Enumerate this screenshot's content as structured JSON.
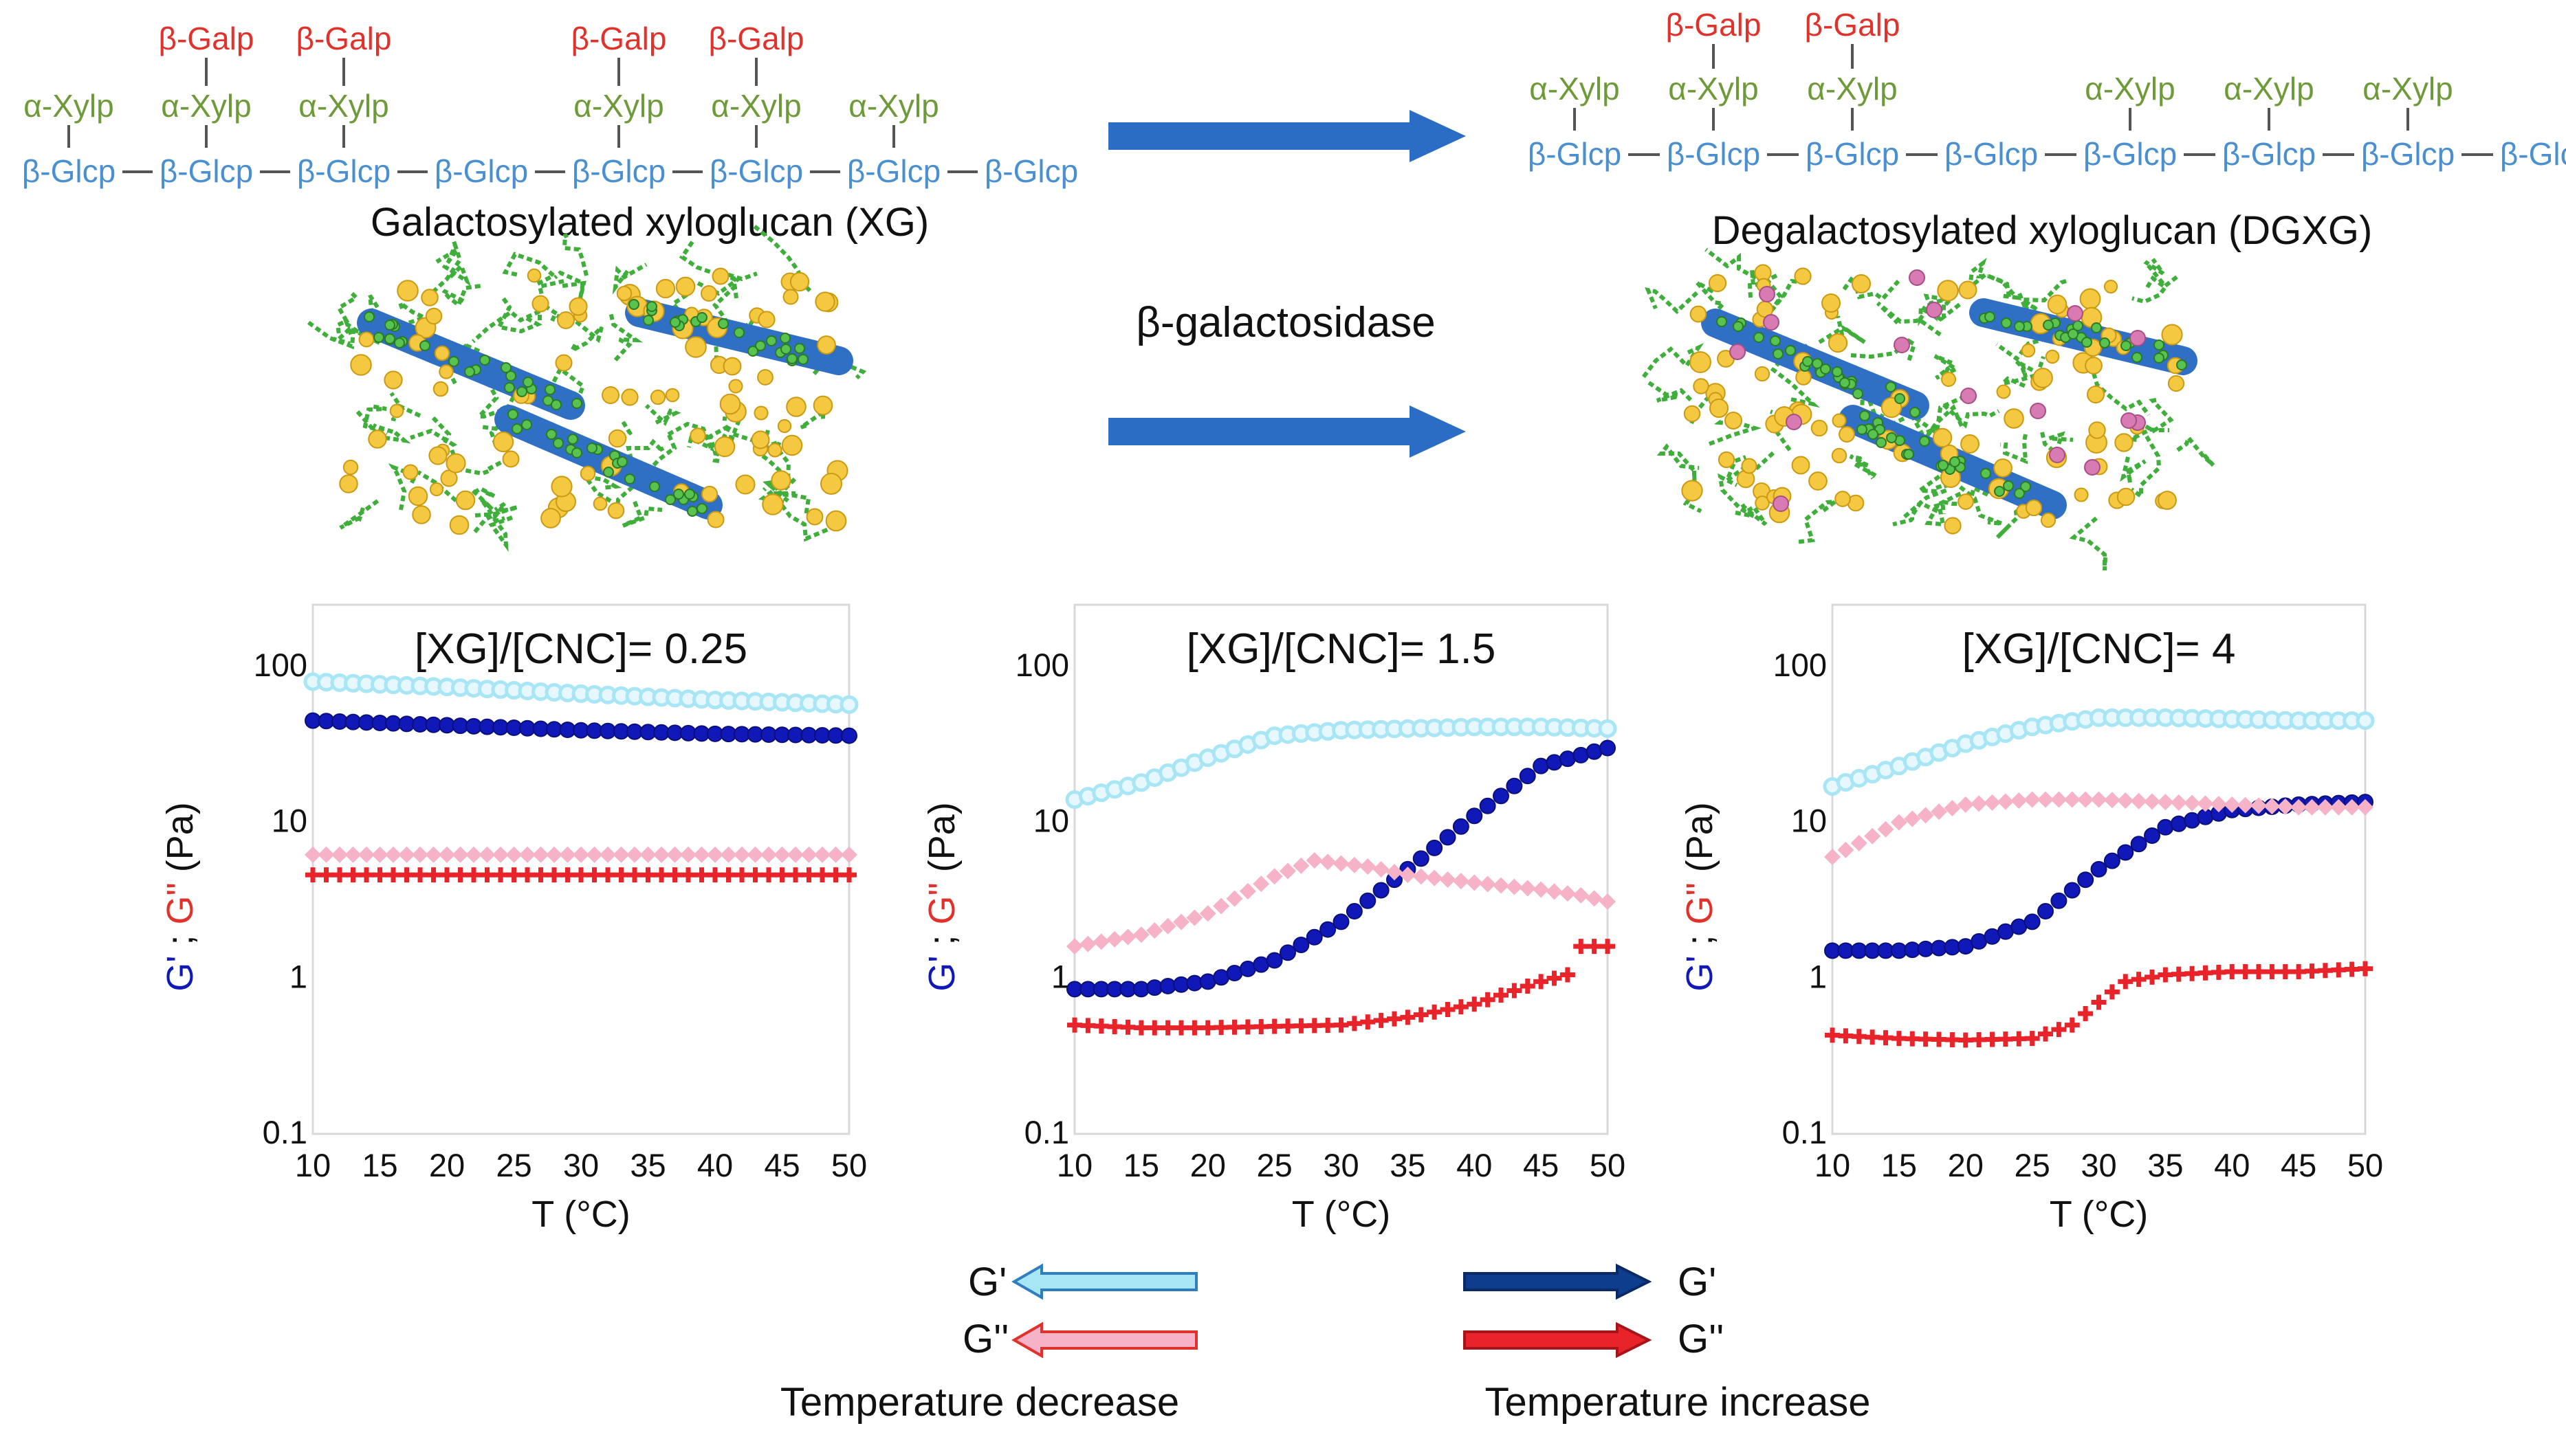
{
  "scheme": {
    "xg_title": "Galactosylated xyloglucan (XG)",
    "dgxg_title": "Degalactosylated xyloglucan (DGXG)",
    "enzyme_label": "β-galactosidase",
    "residues": {
      "glc": "β-Glcp",
      "xyl": "α-Xylp",
      "gal": "β-Galp"
    },
    "xg": {
      "backbone_count": 8,
      "xyl_on": [
        0,
        1,
        2,
        4,
        5,
        6
      ],
      "gal_on": [
        1,
        2,
        4,
        5
      ]
    },
    "dgxg": {
      "backbone_count": 8,
      "xyl_on": [
        0,
        1,
        2,
        4,
        5,
        6
      ],
      "gal_on": [
        1,
        2
      ]
    },
    "colors": {
      "glc": "#4a8fcf",
      "xyl": "#6f9a3a",
      "gal": "#e0312b",
      "arrow": "#2b6cc4"
    }
  },
  "chart_data": [
    {
      "type": "scatter",
      "title": "[XG]/[CNC]= 0.25",
      "xlabel": "T (°C)",
      "ylabel_parts": [
        "G'",
        " ; ",
        "G\"",
        " (Pa)"
      ],
      "xlim": [
        10,
        50
      ],
      "ylim": [
        0.1,
        100
      ],
      "yscale": "log",
      "xticks": [
        "10",
        "15",
        "20",
        "25",
        "30",
        "35",
        "40",
        "45",
        "50"
      ],
      "yticks": [
        "100",
        "10",
        "1",
        "0.1"
      ],
      "series": [
        {
          "key": "gp_dec",
          "marker": "circle-open",
          "color": "#a8e6f5",
          "x": [
            10,
            20,
            30,
            40,
            50
          ],
          "y": [
            80,
            74,
            67,
            61,
            57
          ]
        },
        {
          "key": "gp_inc",
          "marker": "circle",
          "color": "#1018b8",
          "x": [
            10,
            20,
            30,
            40,
            50
          ],
          "y": [
            45,
            42,
            39,
            37,
            36
          ]
        },
        {
          "key": "gpp_dec",
          "marker": "diamond",
          "color": "#f6b3c8",
          "x": [
            10,
            20,
            30,
            40,
            50
          ],
          "y": [
            6.2,
            6.2,
            6.2,
            6.2,
            6.2
          ]
        },
        {
          "key": "gpp_inc",
          "marker": "plus",
          "color": "#e8232a",
          "x": [
            10,
            20,
            30,
            40,
            50
          ],
          "y": [
            4.6,
            4.6,
            4.6,
            4.6,
            4.6
          ]
        }
      ]
    },
    {
      "type": "scatter",
      "title": "[XG]/[CNC]= 1.5",
      "xlabel": "T (°C)",
      "ylabel_parts": [
        "G'",
        " ; ",
        "G\"",
        " (Pa)"
      ],
      "xlim": [
        10,
        50
      ],
      "ylim": [
        0.1,
        100
      ],
      "yscale": "log",
      "xticks": [
        "10",
        "15",
        "20",
        "25",
        "30",
        "35",
        "40",
        "45",
        "50"
      ],
      "yticks": [
        "100",
        "10",
        "1",
        "0.1"
      ],
      "series": [
        {
          "key": "gp_dec",
          "marker": "circle-open",
          "color": "#a8e6f5",
          "x": [
            10,
            15,
            20,
            25,
            30,
            35,
            40,
            45,
            50
          ],
          "y": [
            14,
            18,
            26,
            36,
            39,
            40,
            41,
            41,
            40
          ]
        },
        {
          "key": "gp_inc",
          "marker": "circle",
          "color": "#1018b8",
          "x": [
            10,
            15,
            20,
            25,
            30,
            35,
            40,
            45,
            48,
            50
          ],
          "y": [
            0.85,
            0.85,
            0.95,
            1.3,
            2.3,
            5,
            11,
            23,
            27,
            30
          ]
        },
        {
          "key": "gpp_dec",
          "marker": "diamond",
          "color": "#f6b3c8",
          "x": [
            10,
            15,
            20,
            25,
            28,
            32,
            35,
            40,
            45,
            48,
            50
          ],
          "y": [
            1.6,
            1.9,
            2.6,
            4.5,
            5.7,
            5.2,
            4.6,
            4.1,
            3.7,
            3.4,
            3.1
          ]
        },
        {
          "key": "gpp_inc",
          "marker": "plus",
          "color": "#e8232a",
          "x": [
            10,
            15,
            20,
            25,
            30,
            35,
            40,
            45,
            47,
            48,
            50
          ],
          "y": [
            0.5,
            0.48,
            0.48,
            0.49,
            0.5,
            0.56,
            0.68,
            0.95,
            1.05,
            1.6,
            1.6
          ]
        }
      ]
    },
    {
      "type": "scatter",
      "title": "[XG]/[CNC]= 4",
      "xlabel": "T (°C)",
      "ylabel_parts": [
        "G'",
        " ; ",
        "G\"",
        " (Pa)"
      ],
      "xlim": [
        10,
        50
      ],
      "ylim": [
        0.1,
        100
      ],
      "yscale": "log",
      "xticks": [
        "10",
        "15",
        "20",
        "25",
        "30",
        "35",
        "40",
        "45",
        "50"
      ],
      "yticks": [
        "100",
        "10",
        "1",
        "0.1"
      ],
      "series": [
        {
          "key": "gp_dec",
          "marker": "circle-open",
          "color": "#a8e6f5",
          "x": [
            10,
            15,
            20,
            25,
            30,
            35,
            40,
            45,
            50
          ],
          "y": [
            17,
            23,
            32,
            41,
            47,
            47,
            46,
            45,
            45
          ]
        },
        {
          "key": "gp_inc",
          "marker": "circle",
          "color": "#1018b8",
          "x": [
            10,
            15,
            20,
            25,
            30,
            35,
            40,
            45,
            50
          ],
          "y": [
            1.5,
            1.5,
            1.6,
            2.3,
            5,
            9.3,
            12,
            13,
            13.5
          ]
        },
        {
          "key": "gpp_dec",
          "marker": "diamond",
          "color": "#f6b3c8",
          "x": [
            10,
            15,
            20,
            25,
            30,
            35,
            40,
            45,
            50
          ],
          "y": [
            6,
            10,
            13,
            14,
            14,
            13.5,
            13,
            12.5,
            12.5
          ]
        },
        {
          "key": "gpp_inc",
          "marker": "plus",
          "color": "#e8232a",
          "x": [
            10,
            15,
            20,
            25,
            28,
            30,
            32,
            35,
            40,
            45,
            50
          ],
          "y": [
            0.43,
            0.41,
            0.4,
            0.41,
            0.5,
            0.7,
            0.95,
            1.05,
            1.1,
            1.1,
            1.15
          ]
        }
      ]
    }
  ],
  "legend": {
    "decrease_label": "Temperature decrease",
    "increase_label": "Temperature increase",
    "gprime": "G'",
    "gdouble": "G''"
  }
}
